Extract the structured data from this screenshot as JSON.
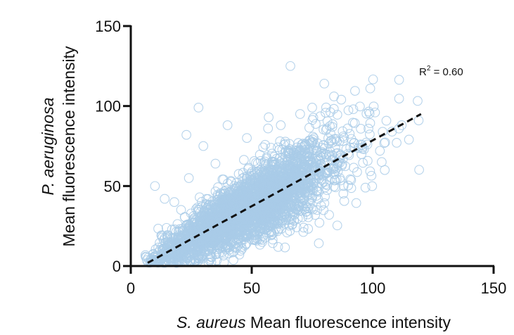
{
  "chart_data": {
    "type": "scatter",
    "xlabel_italic": "S. aureus",
    "xlabel_rest": " Mean fluorescence intensity",
    "ylabel_line1": "P. aeruginosa",
    "ylabel_line2": "Mean fluorescence intensity",
    "xlim": [
      0,
      150
    ],
    "ylim": [
      0,
      150
    ],
    "xticks": [
      0,
      50,
      100,
      150
    ],
    "yticks": [
      0,
      50,
      100,
      150
    ],
    "xtick_labels": [
      "0",
      "50",
      "100",
      "150"
    ],
    "ytick_labels": [
      "0",
      "50",
      "100",
      "150"
    ],
    "grid": false,
    "legend": "none",
    "marker": "open-circle",
    "point_color": "#a9cbe8",
    "line_color": "#111111",
    "annotation": {
      "prefix": "R",
      "sup": "2",
      "suffix": " = 0.60"
    },
    "fit_line": {
      "style": "dashed",
      "x": [
        7,
        120
      ],
      "y": [
        2,
        95
      ]
    },
    "highlight_points": [
      {
        "x": 66,
        "y": 125
      },
      {
        "x": 80,
        "y": 114
      },
      {
        "x": 99,
        "y": 111
      },
      {
        "x": 28,
        "y": 99
      },
      {
        "x": 10,
        "y": 50
      },
      {
        "x": 119,
        "y": 91
      },
      {
        "x": 115,
        "y": 79
      },
      {
        "x": 97,
        "y": 49
      },
      {
        "x": 23,
        "y": 82
      },
      {
        "x": 57,
        "y": 93
      },
      {
        "x": 84,
        "y": 106
      },
      {
        "x": 87,
        "y": 104
      },
      {
        "x": 92,
        "y": 98
      },
      {
        "x": 40,
        "y": 88
      },
      {
        "x": 75,
        "y": 99
      },
      {
        "x": 108,
        "y": 84
      },
      {
        "x": 112,
        "y": 88
      },
      {
        "x": 101,
        "y": 96
      },
      {
        "x": 103,
        "y": 72
      },
      {
        "x": 70,
        "y": 95
      },
      {
        "x": 62,
        "y": 88
      },
      {
        "x": 82,
        "y": 32
      },
      {
        "x": 88,
        "y": 50
      },
      {
        "x": 35,
        "y": 64
      },
      {
        "x": 30,
        "y": 75
      },
      {
        "x": 48,
        "y": 80
      },
      {
        "x": 18,
        "y": 40
      },
      {
        "x": 24,
        "y": 55
      },
      {
        "x": 14,
        "y": 42
      },
      {
        "x": 105,
        "y": 60
      }
    ],
    "cluster": {
      "n_points": 3200,
      "x_range": [
        6,
        120
      ],
      "center_x": 48,
      "spread_x": 18,
      "trend_intercept": -4,
      "trend_slope": 0.83,
      "spread_y_base": 5,
      "spread_y_slope": 0.11,
      "seed": 12345
    }
  }
}
